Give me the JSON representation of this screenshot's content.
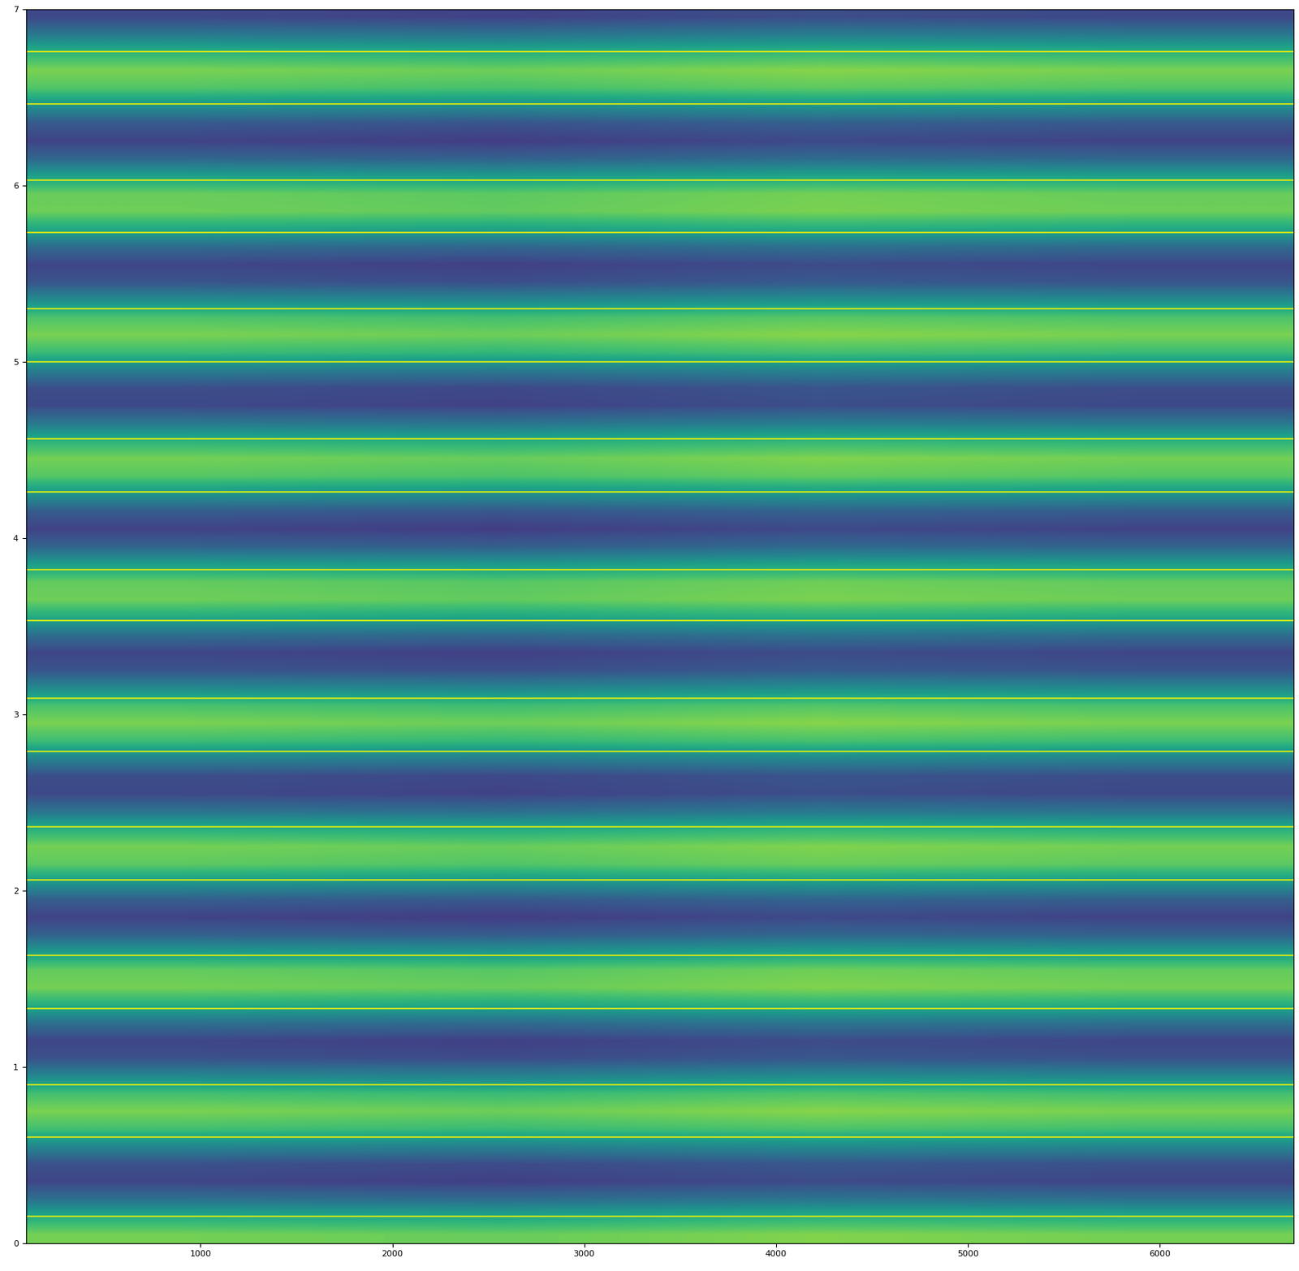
{
  "chart_data": {
    "type": "heatmap",
    "xlim": [
      90,
      6700
    ],
    "xticks": [
      1000,
      2000,
      3000,
      4000,
      5000,
      6000
    ],
    "ylim": [
      0,
      7
    ],
    "yticks": [
      0,
      1,
      2,
      3,
      4,
      5,
      6,
      7
    ],
    "color": "viridis",
    "cell_range": [
      0,
      1
    ],
    "cells": [
      [
        0.79,
        0.77,
        0.81,
        0.79
      ],
      [
        0.62,
        0.6,
        0.64,
        0.62
      ],
      [
        0.37,
        0.35,
        0.39,
        0.37
      ],
      [
        0.21,
        0.19,
        0.23,
        0.21
      ],
      [
        0.25,
        0.23,
        0.27,
        0.25
      ],
      [
        0.46,
        0.44,
        0.48,
        0.46
      ],
      [
        0.7,
        0.68,
        0.72,
        0.7
      ],
      [
        0.8,
        0.78,
        0.82,
        0.8
      ],
      [
        0.7,
        0.68,
        0.72,
        0.7
      ],
      [
        0.46,
        0.44,
        0.48,
        0.46
      ],
      [
        0.25,
        0.23,
        0.27,
        0.25
      ],
      [
        0.21,
        0.19,
        0.23,
        0.21
      ],
      [
        0.37,
        0.35,
        0.39,
        0.37
      ],
      [
        0.62,
        0.6,
        0.64,
        0.62
      ],
      [
        0.79,
        0.77,
        0.81,
        0.79
      ],
      [
        0.76,
        0.74,
        0.78,
        0.76
      ],
      [
        0.55,
        0.53,
        0.57,
        0.55
      ],
      [
        0.31,
        0.29,
        0.33,
        0.31
      ],
      [
        0.2,
        0.18,
        0.22,
        0.2
      ],
      [
        0.3,
        0.28,
        0.32,
        0.3
      ],
      [
        0.54,
        0.52,
        0.56,
        0.54
      ],
      [
        0.75,
        0.73,
        0.77,
        0.75
      ],
      [
        0.79,
        0.77,
        0.81,
        0.79
      ],
      [
        0.63,
        0.61,
        0.65,
        0.63
      ],
      [
        0.38,
        0.36,
        0.4,
        0.38
      ],
      [
        0.22,
        0.2,
        0.24,
        0.22
      ],
      [
        0.24,
        0.22,
        0.26,
        0.24
      ],
      [
        0.45,
        0.43,
        0.47,
        0.45
      ],
      [
        0.69,
        0.67,
        0.71,
        0.69
      ],
      [
        0.8,
        0.78,
        0.82,
        0.8
      ],
      [
        0.71,
        0.69,
        0.73,
        0.71
      ],
      [
        0.47,
        0.45,
        0.49,
        0.47
      ],
      [
        0.26,
        0.24,
        0.28,
        0.26
      ],
      [
        0.21,
        0.19,
        0.23,
        0.21
      ],
      [
        0.36,
        0.34,
        0.38,
        0.36
      ],
      [
        0.61,
        0.59,
        0.63,
        0.61
      ],
      [
        0.78,
        0.76,
        0.8,
        0.78
      ],
      [
        0.76,
        0.74,
        0.78,
        0.76
      ],
      [
        0.56,
        0.54,
        0.58,
        0.56
      ],
      [
        0.32,
        0.3,
        0.34,
        0.32
      ],
      [
        0.2,
        0.18,
        0.22,
        0.2
      ],
      [
        0.29,
        0.27,
        0.31,
        0.29
      ],
      [
        0.52,
        0.5,
        0.54,
        0.52
      ],
      [
        0.74,
        0.72,
        0.76,
        0.74
      ],
      [
        0.79,
        0.77,
        0.81,
        0.79
      ],
      [
        0.64,
        0.62,
        0.66,
        0.64
      ],
      [
        0.4,
        0.38,
        0.42,
        0.4
      ],
      [
        0.22,
        0.2,
        0.24,
        0.22
      ],
      [
        0.24,
        0.22,
        0.26,
        0.24
      ],
      [
        0.43,
        0.41,
        0.45,
        0.43
      ],
      [
        0.68,
        0.66,
        0.7,
        0.68
      ],
      [
        0.8,
        0.78,
        0.82,
        0.8
      ],
      [
        0.72,
        0.7,
        0.74,
        0.72
      ],
      [
        0.48,
        0.46,
        0.5,
        0.48
      ],
      [
        0.26,
        0.24,
        0.28,
        0.26
      ],
      [
        0.21,
        0.19,
        0.23,
        0.21
      ],
      [
        0.35,
        0.33,
        0.37,
        0.35
      ],
      [
        0.6,
        0.58,
        0.62,
        0.6
      ],
      [
        0.78,
        0.76,
        0.8,
        0.78
      ],
      [
        0.77,
        0.75,
        0.79,
        0.77
      ],
      [
        0.57,
        0.55,
        0.59,
        0.57
      ],
      [
        0.33,
        0.31,
        0.35,
        0.33
      ],
      [
        0.2,
        0.18,
        0.22,
        0.2
      ],
      [
        0.28,
        0.26,
        0.3,
        0.28
      ],
      [
        0.51,
        0.49,
        0.53,
        0.51
      ],
      [
        0.73,
        0.71,
        0.75,
        0.73
      ],
      [
        0.8,
        0.78,
        0.82,
        0.8
      ],
      [
        0.65,
        0.63,
        0.67,
        0.65
      ],
      [
        0.41,
        0.39,
        0.43,
        0.41
      ],
      [
        0.22,
        0.2,
        0.24,
        0.22
      ]
    ],
    "lines": {
      "color": "#c2df23",
      "y": [
        0.15,
        0.6,
        0.9,
        1.33,
        1.63,
        2.06,
        2.36,
        2.79,
        3.09,
        3.53,
        3.82,
        4.26,
        4.56,
        5.0,
        5.3,
        5.73,
        6.03,
        6.46,
        6.76
      ]
    }
  }
}
